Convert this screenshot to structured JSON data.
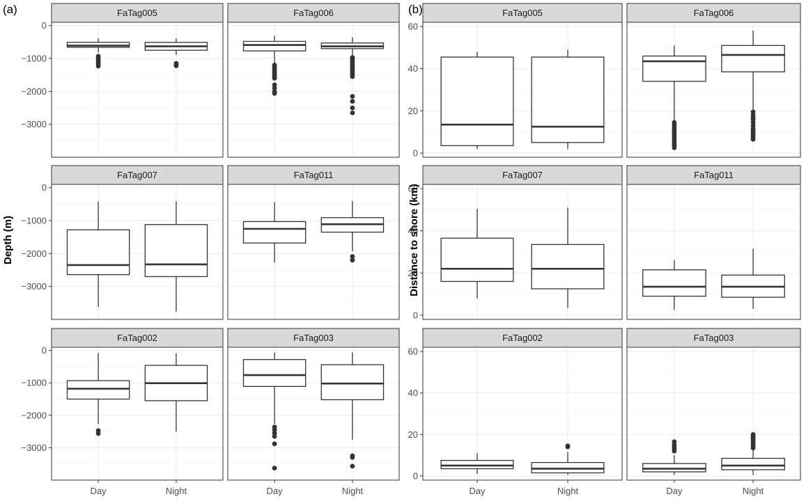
{
  "panel_labels": [
    "(a)",
    "(b)"
  ],
  "chart_data": [
    {
      "type": "box",
      "panel": "(a)",
      "ylabel": "Depth (m)",
      "categories": [
        "Day",
        "Night"
      ],
      "ylim": [
        -4000,
        100
      ],
      "yticks": [
        0,
        -1000,
        -2000,
        -3000
      ],
      "ytick_labels": [
        "0",
        "−1000",
        "−2000",
        "−3000"
      ],
      "grid": true,
      "facets": [
        {
          "name": "FaTag005",
          "boxes": [
            {
              "category": "Day",
              "min": -820,
              "q1": -660,
              "median": -610,
              "q3": -510,
              "max": -390,
              "outliers": [
                -930,
                -980,
                -1030,
                -1080,
                -1130,
                -1180,
                -1230
              ]
            },
            {
              "category": "Night",
              "min": -890,
              "q1": -750,
              "median": -630,
              "q3": -510,
              "max": -390,
              "outliers": [
                -1150,
                -1190,
                -1220
              ]
            }
          ]
        },
        {
          "name": "FaTag006",
          "boxes": [
            {
              "category": "Day",
              "min": -1150,
              "q1": -770,
              "median": -590,
              "q3": -480,
              "max": -310,
              "outliers": [
                -1200,
                -1250,
                -1300,
                -1350,
                -1400,
                -1450,
                -1500,
                -1550,
                -1600,
                -1800,
                -1900,
                -2000,
                -2060
              ]
            },
            {
              "category": "Night",
              "min": -950,
              "q1": -700,
              "median": -630,
              "q3": -530,
              "max": -360,
              "outliers": [
                -970,
                -1000,
                -1050,
                -1100,
                -1150,
                -1200,
                -1250,
                -1300,
                -1350,
                -1400,
                -1450,
                -1500,
                -1550,
                -2150,
                -2300,
                -2500,
                -2650
              ]
            }
          ]
        },
        {
          "name": "FaTag007",
          "boxes": [
            {
              "category": "Day",
              "min": -3620,
              "q1": -2640,
              "median": -2350,
              "q3": -1280,
              "max": -420,
              "outliers": []
            },
            {
              "category": "Night",
              "min": -3760,
              "q1": -2700,
              "median": -2330,
              "q3": -1120,
              "max": -410,
              "outliers": []
            }
          ]
        },
        {
          "name": "FaTag011",
          "boxes": [
            {
              "category": "Day",
              "min": -2270,
              "q1": -1680,
              "median": -1250,
              "q3": -1030,
              "max": -440,
              "outliers": []
            },
            {
              "category": "Night",
              "min": -1930,
              "q1": -1350,
              "median": -1110,
              "q3": -910,
              "max": -410,
              "outliers": [
                -2090,
                -2200
              ]
            }
          ]
        },
        {
          "name": "FaTag002",
          "boxes": [
            {
              "category": "Day",
              "min": -2270,
              "q1": -1500,
              "median": -1180,
              "q3": -930,
              "max": -80,
              "outliers": [
                -2470,
                -2560
              ]
            },
            {
              "category": "Night",
              "min": -2500,
              "q1": -1550,
              "median": -1010,
              "q3": -460,
              "max": -90,
              "outliers": []
            }
          ]
        },
        {
          "name": "FaTag003",
          "boxes": [
            {
              "category": "Day",
              "min": -2260,
              "q1": -1110,
              "median": -760,
              "q3": -280,
              "max": -60,
              "outliers": [
                -2360,
                -2450,
                -2550,
                -2650,
                -2880,
                -3630
              ]
            },
            {
              "category": "Night",
              "min": -2750,
              "q1": -1520,
              "median": -1020,
              "q3": -440,
              "max": -60,
              "outliers": [
                -3250,
                -3300,
                -3570
              ]
            }
          ]
        }
      ]
    },
    {
      "type": "box",
      "panel": "(b)",
      "ylabel": "Distance to shore (km)",
      "categories": [
        "Day",
        "Night"
      ],
      "ylim": [
        -2,
        62
      ],
      "yticks": [
        0,
        20,
        40,
        60
      ],
      "ytick_labels": [
        "0",
        "20",
        "40",
        "60"
      ],
      "grid": true,
      "facets": [
        {
          "name": "FaTag005",
          "boxes": [
            {
              "category": "Day",
              "min": 2,
              "q1": 3.5,
              "median": 13.5,
              "q3": 45.5,
              "max": 48,
              "outliers": []
            },
            {
              "category": "Night",
              "min": 2,
              "q1": 5,
              "median": 12.5,
              "q3": 45.5,
              "max": 49,
              "outliers": []
            }
          ]
        },
        {
          "name": "FaTag006",
          "boxes": [
            {
              "category": "Day",
              "min": 15,
              "q1": 34,
              "median": 43.5,
              "q3": 46,
              "max": 51,
              "outliers": [
                2.5,
                3.5,
                4.5,
                5.5,
                6.5,
                7.5,
                8.5,
                9.5,
                10.5,
                11.5,
                12.5,
                13.5,
                14.5
              ]
            },
            {
              "category": "Night",
              "min": 20,
              "q1": 38.5,
              "median": 46.5,
              "q3": 51,
              "max": 58,
              "outliers": [
                6.5,
                7.5,
                8.5,
                9.5,
                10.5,
                11.5,
                13,
                14.5,
                16,
                17,
                18,
                19.5
              ]
            }
          ]
        },
        {
          "name": "FaTag007",
          "boxes": [
            {
              "category": "Day",
              "min": 8,
              "q1": 16,
              "median": 22,
              "q3": 36.5,
              "max": 50.5,
              "outliers": []
            },
            {
              "category": "Night",
              "min": 3.5,
              "q1": 12.5,
              "median": 22,
              "q3": 33.5,
              "max": 51,
              "outliers": []
            }
          ]
        },
        {
          "name": "FaTag011",
          "boxes": [
            {
              "category": "Day",
              "min": 2.5,
              "q1": 9,
              "median": 13.5,
              "q3": 21.5,
              "max": 26,
              "outliers": []
            },
            {
              "category": "Night",
              "min": 3,
              "q1": 8.5,
              "median": 13.5,
              "q3": 19,
              "max": 31.5,
              "outliers": []
            }
          ]
        },
        {
          "name": "FaTag002",
          "boxes": [
            {
              "category": "Day",
              "min": 1,
              "q1": 3.5,
              "median": 5,
              "q3": 7.5,
              "max": 11,
              "outliers": []
            },
            {
              "category": "Night",
              "min": 0.5,
              "q1": 1.5,
              "median": 3.5,
              "q3": 6.5,
              "max": 11.5,
              "outliers": [
                14,
                14.5
              ]
            }
          ]
        },
        {
          "name": "FaTag003",
          "boxes": [
            {
              "category": "Day",
              "min": 0.5,
              "q1": 2,
              "median": 3.5,
              "q3": 6,
              "max": 10,
              "outliers": [
                12,
                13,
                14,
                15,
                16.5
              ]
            },
            {
              "category": "Night",
              "min": 0.5,
              "q1": 3,
              "median": 5,
              "q3": 8.5,
              "max": 12.5,
              "outliers": [
                13.5,
                14.5,
                15.5,
                16.5,
                17.5,
                18.5,
                19,
                19.5,
                20
              ]
            }
          ]
        }
      ]
    }
  ]
}
